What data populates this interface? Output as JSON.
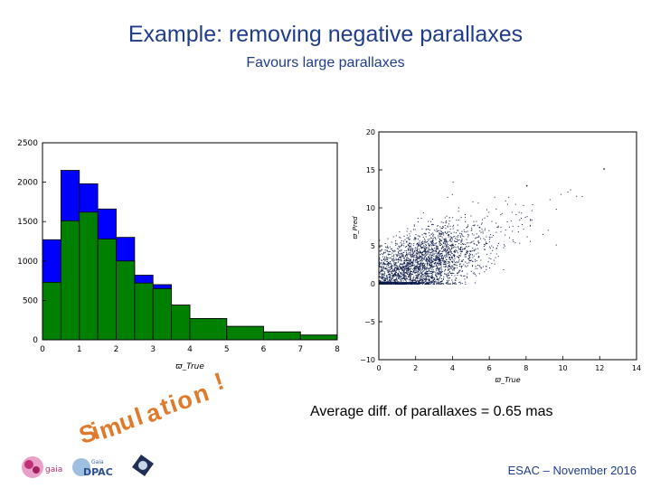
{
  "slide": {
    "title": "Example: removing negative parallaxes",
    "subtitle": "Favours large parallaxes",
    "note": "Average diff. of parallaxes = 0.65 mas",
    "footer": "ESAC – November 2016",
    "stamp": "Simulation !",
    "logos": [
      "gaia",
      "Gaia DPAC"
    ]
  },
  "chart_data": [
    {
      "type": "bar",
      "xlabel": "ϖ_True",
      "ylabel": "",
      "xlim": [
        0,
        8
      ],
      "ylim": [
        0,
        2500
      ],
      "xticks": [
        "0",
        "1",
        "2",
        "3",
        "4",
        "5",
        "6",
        "7",
        "8"
      ],
      "yticks": [
        "0",
        "500",
        "1000",
        "1500",
        "2000",
        "2500"
      ],
      "bin_edges": [
        0,
        0.5,
        1,
        1.5,
        2,
        2.5,
        3,
        3.5,
        4,
        5,
        6,
        7,
        8
      ],
      "series": [
        {
          "color": "#0000ff",
          "values": [
            1270,
            2150,
            1980,
            1660,
            1300,
            820,
            700,
            440,
            270,
            170,
            100,
            60
          ]
        },
        {
          "color": "#008000",
          "values": [
            730,
            1510,
            1620,
            1280,
            1000,
            720,
            650,
            440,
            270,
            170,
            100,
            60
          ]
        }
      ]
    },
    {
      "type": "scatter",
      "xlabel": "ϖ_True",
      "ylabel": "ϖ_Pred",
      "xlim": [
        0,
        14
      ],
      "ylim": [
        -10,
        20
      ],
      "xticks": [
        "0",
        "2",
        "4",
        "6",
        "8",
        "10",
        "12",
        "14"
      ],
      "yticks": [
        "−10",
        "−5",
        "0",
        "5",
        "10",
        "15",
        "20"
      ],
      "color": "#0b1a4a",
      "marker_size": 1,
      "n_points": 3000,
      "distribution": {
        "x_mean": 2.0,
        "x_spread": 1.6,
        "y_slope": 1.0,
        "y_noise": 2.2,
        "y_min": 0
      }
    }
  ]
}
